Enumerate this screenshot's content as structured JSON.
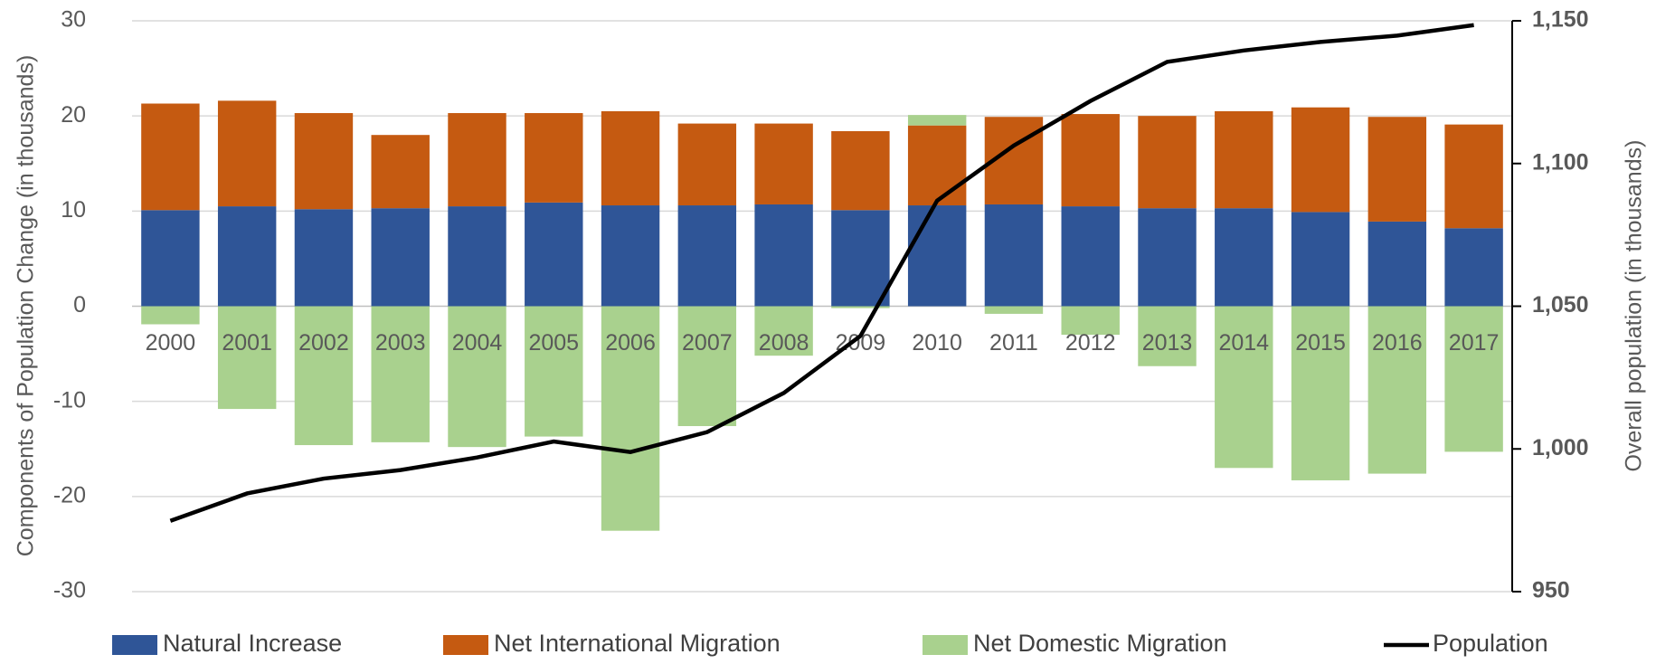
{
  "chart_data": {
    "type": "bar",
    "categories": [
      "2000",
      "2001",
      "2002",
      "2003",
      "2004",
      "2005",
      "2006",
      "2007",
      "2008",
      "2009",
      "2010",
      "2011",
      "2012",
      "2013",
      "2014",
      "2015",
      "2016",
      "2017"
    ],
    "series": [
      {
        "name": "Natural Increase",
        "color": "#2f5597",
        "values": [
          10.1,
          10.5,
          10.2,
          10.3,
          10.5,
          10.9,
          10.6,
          10.6,
          10.7,
          10.1,
          10.6,
          10.7,
          10.5,
          10.3,
          10.3,
          9.9,
          8.9,
          8.2
        ]
      },
      {
        "name": "Net International Migration",
        "color": "#c55a11",
        "values": [
          11.2,
          11.1,
          10.1,
          7.7,
          9.8,
          9.4,
          9.9,
          8.6,
          8.5,
          8.3,
          8.4,
          9.2,
          9.7,
          9.7,
          10.2,
          11.0,
          11.0,
          10.9
        ]
      },
      {
        "name": "Net Domestic Migration",
        "color": "#a9d18e",
        "values": [
          -1.9,
          -10.8,
          -14.6,
          -14.3,
          -14.8,
          -13.7,
          -23.6,
          -12.6,
          -5.2,
          -0.2,
          1.1,
          -0.8,
          -3.0,
          -6.3,
          -17.0,
          -18.3,
          -17.6,
          -15.3
        ]
      },
      {
        "name": "Population",
        "color": "#000000",
        "type": "line",
        "axis": "y2",
        "values": [
          974.8,
          984.4,
          989.6,
          992.6,
          997.0,
          1002.6,
          998.9,
          1005.9,
          1019.6,
          1039.6,
          1087.0,
          1106.3,
          1121.9,
          1135.6,
          1139.6,
          1142.6,
          1144.8,
          1148.5
        ]
      }
    ],
    "ylabel": "Components of Population Change (in thousands)",
    "y2label": "Overall population (in thousands)",
    "ylim": [
      -30,
      30
    ],
    "yticks": [
      -30,
      -20,
      -10,
      0,
      10,
      20,
      30
    ],
    "y2lim": [
      950,
      1150
    ],
    "y2ticks": [
      950,
      {
        "value": 1000,
        "label": "1,000"
      },
      {
        "value": 1050,
        "label": "1,050"
      },
      {
        "value": 1100,
        "label": "1,100"
      },
      {
        "value": 1150,
        "label": "1,150"
      }
    ],
    "grid": true,
    "stacked": true,
    "legend": "bottom"
  }
}
